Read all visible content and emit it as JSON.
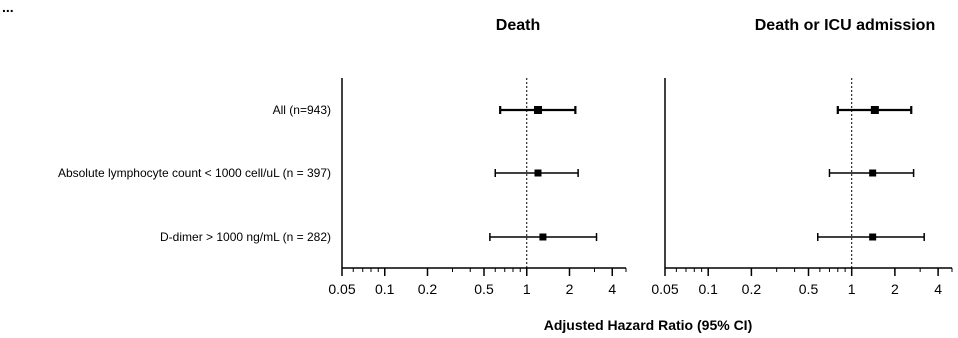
{
  "header_fragment": "...",
  "chart_data": {
    "type": "forest",
    "xlabel": "Adjusted Hazard Ratio (95% CI)",
    "xscale": "log",
    "xlim": [
      0.05,
      5
    ],
    "reference_line": 1,
    "categories": [
      "All (n=943)",
      "Absolute lymphocyte count < 1000 cell/uL (n = 397)",
      "D-dimer > 1000 ng/mL (n = 282)"
    ],
    "x_ticks": [
      0.05,
      0.1,
      0.2,
      0.5,
      1,
      2,
      4
    ],
    "x_tick_labels": [
      "0.05",
      "0.1",
      "0.2",
      "0.5",
      "1",
      "2",
      "4"
    ],
    "panels": [
      {
        "title": "Death",
        "estimates": [
          1.2,
          1.2,
          1.3
        ],
        "lower": [
          0.65,
          0.6,
          0.55
        ],
        "upper": [
          2.2,
          2.3,
          3.1
        ]
      },
      {
        "title": "Death or ICU admission",
        "estimates": [
          1.45,
          1.4,
          1.4
        ],
        "lower": [
          0.8,
          0.7,
          0.58
        ],
        "upper": [
          2.6,
          2.7,
          3.2
        ]
      }
    ]
  }
}
